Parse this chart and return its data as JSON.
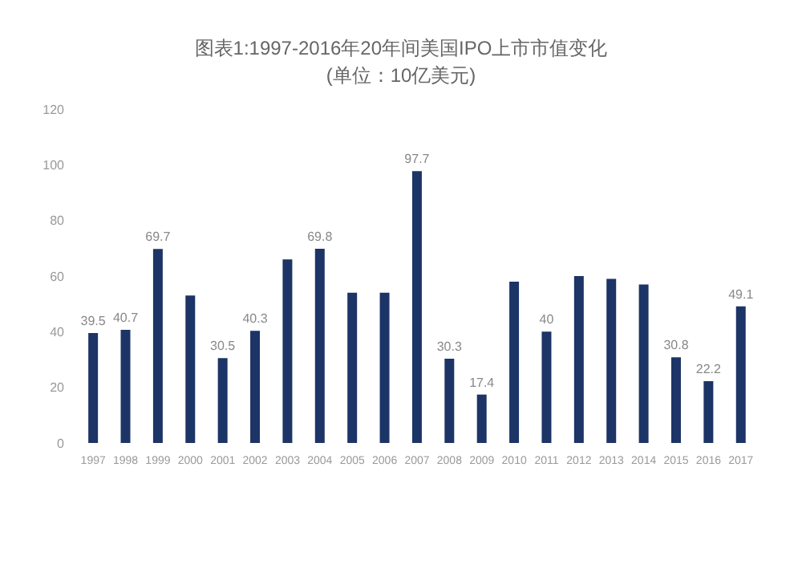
{
  "chart_data": {
    "type": "bar",
    "title": "图表1:1997-2016年20年间美国IPO上市市值变化",
    "subtitle": "(单位：10亿美元)",
    "categories": [
      "1997",
      "1998",
      "1999",
      "2000",
      "2001",
      "2002",
      "2003",
      "2004",
      "2005",
      "2006",
      "2007",
      "2008",
      "2009",
      "2010",
      "2011",
      "2012",
      "2013",
      "2014",
      "2015",
      "2016",
      "2017"
    ],
    "values": [
      39.5,
      40.7,
      69.7,
      53,
      30.5,
      40.3,
      66,
      69.8,
      54,
      54,
      97.7,
      30.3,
      17.4,
      58,
      40,
      60,
      59,
      57,
      30.8,
      22.2,
      49.1
    ],
    "value_labels": [
      "39.5",
      "40.7",
      "69.7",
      null,
      "30.5",
      "40.3",
      null,
      "69.8",
      null,
      null,
      "97.7",
      "30.3",
      "17.4",
      null,
      "40",
      null,
      null,
      null,
      "30.8",
      "22.2",
      "49.1"
    ],
    "color": "#1c3466",
    "ylim": [
      0,
      120
    ],
    "yticks": [
      0,
      20,
      40,
      60,
      80,
      100,
      120
    ],
    "grid": false
  }
}
